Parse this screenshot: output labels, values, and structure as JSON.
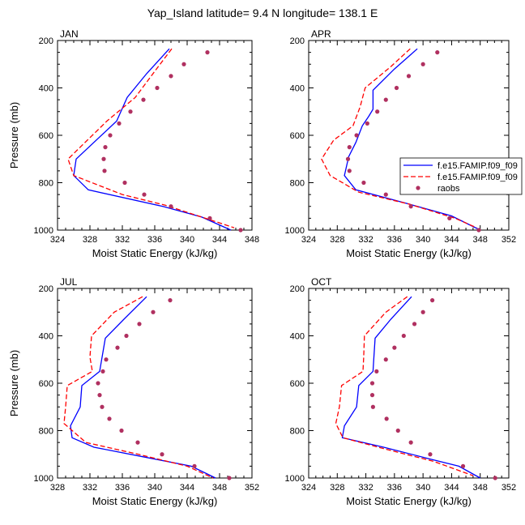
{
  "figure": {
    "title": "Yap_Island  latitude= 9.4 N longitude= 138.1 E"
  },
  "legend": {
    "entries": [
      "f.e15.FAMIP.f09_f09",
      "f.e15.FAMIP.f09_f09",
      "raobs"
    ],
    "placement": "right of APR panel"
  },
  "chart_data": [
    {
      "type": "line",
      "panel": "JAN",
      "xlabel": "Moist Static Energy (kJ/kg)",
      "ylabel": "Pressure (mb)",
      "xlim": [
        324,
        348
      ],
      "xticks": [
        324,
        328,
        332,
        336,
        340,
        344,
        348
      ],
      "ylim": [
        200,
        1000
      ],
      "yticks": [
        200,
        400,
        600,
        800,
        1000
      ],
      "y_inverted": true,
      "grid": false,
      "y": [
        250,
        300,
        350,
        400,
        450,
        500,
        550,
        600,
        650,
        700,
        750,
        800,
        850,
        900,
        950,
        1000
      ],
      "series": [
        {
          "name": "f.e15.FAMIP.f09_f09",
          "color": "#0000ff",
          "dash": "solid",
          "points": [
            [
              337.8,
              235
            ],
            [
              335.0,
              340
            ],
            [
              332.6,
              440
            ],
            [
              331.3,
              540
            ],
            [
              326.3,
              700
            ],
            [
              326.0,
              770
            ],
            [
              327.8,
              830
            ],
            [
              337.0,
              900
            ],
            [
              341.8,
              945
            ],
            [
              345.4,
              1000
            ]
          ]
        },
        {
          "name": "f.e15.FAMIP.f09_f09",
          "color": "#ff0000",
          "dash": "dashed",
          "points": [
            [
              338.1,
              235
            ],
            [
              336.0,
              330
            ],
            [
              333.6,
              440
            ],
            [
              330.1,
              540
            ],
            [
              325.3,
              700
            ],
            [
              326.0,
              770
            ],
            [
              332.0,
              850
            ],
            [
              337.3,
              895
            ],
            [
              341.8,
              945
            ],
            [
              345.8,
              990
            ]
          ]
        },
        {
          "name": "raobs",
          "color": "#b03060",
          "dash": "dots",
          "points": [
            [
              342.5,
              250
            ],
            [
              339.6,
              300
            ],
            [
              338.0,
              350
            ],
            [
              336.3,
              400
            ],
            [
              334.6,
              450
            ],
            [
              333.0,
              500
            ],
            [
              331.6,
              550
            ],
            [
              330.5,
              600
            ],
            [
              329.9,
              650
            ],
            [
              329.7,
              700
            ],
            [
              329.8,
              750
            ],
            [
              332.3,
              800
            ],
            [
              334.7,
              850
            ],
            [
              338.0,
              900
            ],
            [
              342.8,
              950
            ],
            [
              346.6,
              1000
            ]
          ]
        }
      ]
    },
    {
      "type": "line",
      "panel": "APR",
      "xlabel": "Moist Static Energy (kJ/kg)",
      "ylabel": "",
      "xlim": [
        324,
        352
      ],
      "xticks": [
        324,
        328,
        332,
        336,
        340,
        344,
        348,
        352
      ],
      "ylim": [
        200,
        1000
      ],
      "yticks": [
        200,
        400,
        600,
        800,
        1000
      ],
      "y_inverted": true,
      "grid": false,
      "series": [
        {
          "name": "f.e15.FAMIP.f09_f09",
          "color": "#0000ff",
          "dash": "solid",
          "points": [
            [
              339.2,
              235
            ],
            [
              336.0,
              320
            ],
            [
              333.0,
              410
            ],
            [
              333.0,
              490
            ],
            [
              332.4,
              520
            ],
            [
              331.5,
              560
            ],
            [
              330.6,
              630
            ],
            [
              329.6,
              690
            ],
            [
              329.0,
              770
            ],
            [
              330.6,
              830
            ],
            [
              338.0,
              890
            ],
            [
              344.0,
              940
            ],
            [
              348.0,
              1000
            ]
          ]
        },
        {
          "name": "f.e15.FAMIP.f09_f09",
          "color": "#ff0000",
          "dash": "dashed",
          "points": [
            [
              338.2,
              235
            ],
            [
              335.5,
              310
            ],
            [
              331.9,
              400
            ],
            [
              331.2,
              480
            ],
            [
              330.2,
              560
            ],
            [
              327.5,
              620
            ],
            [
              325.8,
              700
            ],
            [
              327.0,
              770
            ],
            [
              331.0,
              840
            ],
            [
              338.0,
              890
            ],
            [
              344.5,
              950
            ],
            [
              347.5,
              990
            ]
          ]
        },
        {
          "name": "raobs",
          "color": "#b03060",
          "dash": "dots",
          "points": [
            [
              342.0,
              250
            ],
            [
              340.0,
              300
            ],
            [
              338.0,
              350
            ],
            [
              336.3,
              400
            ],
            [
              334.8,
              450
            ],
            [
              333.6,
              500
            ],
            [
              332.2,
              550
            ],
            [
              330.7,
              600
            ],
            [
              329.7,
              650
            ],
            [
              329.5,
              700
            ],
            [
              329.7,
              750
            ],
            [
              331.7,
              800
            ],
            [
              334.8,
              850
            ],
            [
              338.3,
              900
            ],
            [
              343.7,
              950
            ],
            [
              347.8,
              1000
            ]
          ]
        }
      ]
    },
    {
      "type": "line",
      "panel": "JUL",
      "xlabel": "Moist Static Energy (kJ/kg)",
      "ylabel": "Pressure (mb)",
      "xlim": [
        328,
        352
      ],
      "xticks": [
        328,
        332,
        336,
        340,
        344,
        348,
        352
      ],
      "ylim": [
        200,
        1000
      ],
      "yticks": [
        200,
        400,
        600,
        800,
        1000
      ],
      "y_inverted": true,
      "grid": false,
      "series": [
        {
          "name": "f.e15.FAMIP.f09_f09",
          "color": "#0000ff",
          "dash": "solid",
          "points": [
            [
              339.0,
              235
            ],
            [
              336.2,
              330
            ],
            [
              333.9,
              410
            ],
            [
              333.4,
              510
            ],
            [
              333.2,
              550
            ],
            [
              331.0,
              610
            ],
            [
              330.8,
              700
            ],
            [
              329.6,
              780
            ],
            [
              329.8,
              830
            ],
            [
              332.5,
              870
            ],
            [
              338.5,
              910
            ],
            [
              344.5,
              950
            ],
            [
              347.5,
              1000
            ]
          ]
        },
        {
          "name": "f.e15.FAMIP.f09_f09",
          "color": "#ff0000",
          "dash": "dashed",
          "points": [
            [
              338.5,
              235
            ],
            [
              335.0,
              300
            ],
            [
              332.2,
              400
            ],
            [
              332.0,
              490
            ],
            [
              332.3,
              550
            ],
            [
              329.2,
              610
            ],
            [
              329.0,
              700
            ],
            [
              328.8,
              770
            ],
            [
              331.5,
              850
            ],
            [
              338.0,
              900
            ],
            [
              344.0,
              950
            ],
            [
              347.2,
              1000
            ]
          ]
        },
        {
          "name": "raobs",
          "color": "#b03060",
          "dash": "dots",
          "points": [
            [
              341.9,
              250
            ],
            [
              339.8,
              300
            ],
            [
              338.1,
              350
            ],
            [
              336.5,
              400
            ],
            [
              335.4,
              450
            ],
            [
              334.0,
              500
            ],
            [
              333.6,
              550
            ],
            [
              333.0,
              600
            ],
            [
              333.2,
              650
            ],
            [
              333.5,
              700
            ],
            [
              334.4,
              750
            ],
            [
              335.9,
              800
            ],
            [
              337.9,
              850
            ],
            [
              340.9,
              900
            ],
            [
              344.9,
              950
            ],
            [
              349.2,
              1000
            ]
          ]
        }
      ]
    },
    {
      "type": "line",
      "panel": "OCT",
      "xlabel": "Moist Static Energy (kJ/kg)",
      "ylabel": "",
      "xlim": [
        324,
        352
      ],
      "xticks": [
        324,
        328,
        332,
        336,
        340,
        344,
        348,
        352
      ],
      "ylim": [
        200,
        1000
      ],
      "yticks": [
        200,
        400,
        600,
        800,
        1000
      ],
      "y_inverted": true,
      "grid": false,
      "series": [
        {
          "name": "f.e15.FAMIP.f09_f09",
          "color": "#0000ff",
          "dash": "solid",
          "points": [
            [
              338.4,
              235
            ],
            [
              335.5,
              330
            ],
            [
              333.3,
              410
            ],
            [
              333.1,
              500
            ],
            [
              333.0,
              550
            ],
            [
              331.0,
              610
            ],
            [
              330.7,
              700
            ],
            [
              329.0,
              780
            ],
            [
              328.7,
              830
            ],
            [
              334.5,
              870
            ],
            [
              341.0,
              920
            ],
            [
              345.0,
              950
            ],
            [
              348.0,
              1000
            ]
          ]
        },
        {
          "name": "f.e15.FAMIP.f09_f09",
          "color": "#ff0000",
          "dash": "dashed",
          "points": [
            [
              337.8,
              235
            ],
            [
              334.8,
              300
            ],
            [
              331.8,
              400
            ],
            [
              331.7,
              490
            ],
            [
              331.6,
              550
            ],
            [
              328.6,
              610
            ],
            [
              328.3,
              700
            ],
            [
              327.8,
              770
            ],
            [
              328.8,
              830
            ],
            [
              335.0,
              880
            ],
            [
              341.5,
              930
            ],
            [
              347.0,
              990
            ]
          ]
        },
        {
          "name": "raobs",
          "color": "#b03060",
          "dash": "dots",
          "points": [
            [
              341.3,
              250
            ],
            [
              340.0,
              300
            ],
            [
              338.8,
              350
            ],
            [
              337.3,
              400
            ],
            [
              336.0,
              450
            ],
            [
              334.8,
              500
            ],
            [
              333.5,
              550
            ],
            [
              332.9,
              600
            ],
            [
              332.9,
              650
            ],
            [
              333.0,
              700
            ],
            [
              334.9,
              750
            ],
            [
              336.5,
              800
            ],
            [
              338.3,
              850
            ],
            [
              341.0,
              900
            ],
            [
              345.6,
              950
            ],
            [
              350.1,
              1000
            ]
          ]
        }
      ]
    }
  ]
}
